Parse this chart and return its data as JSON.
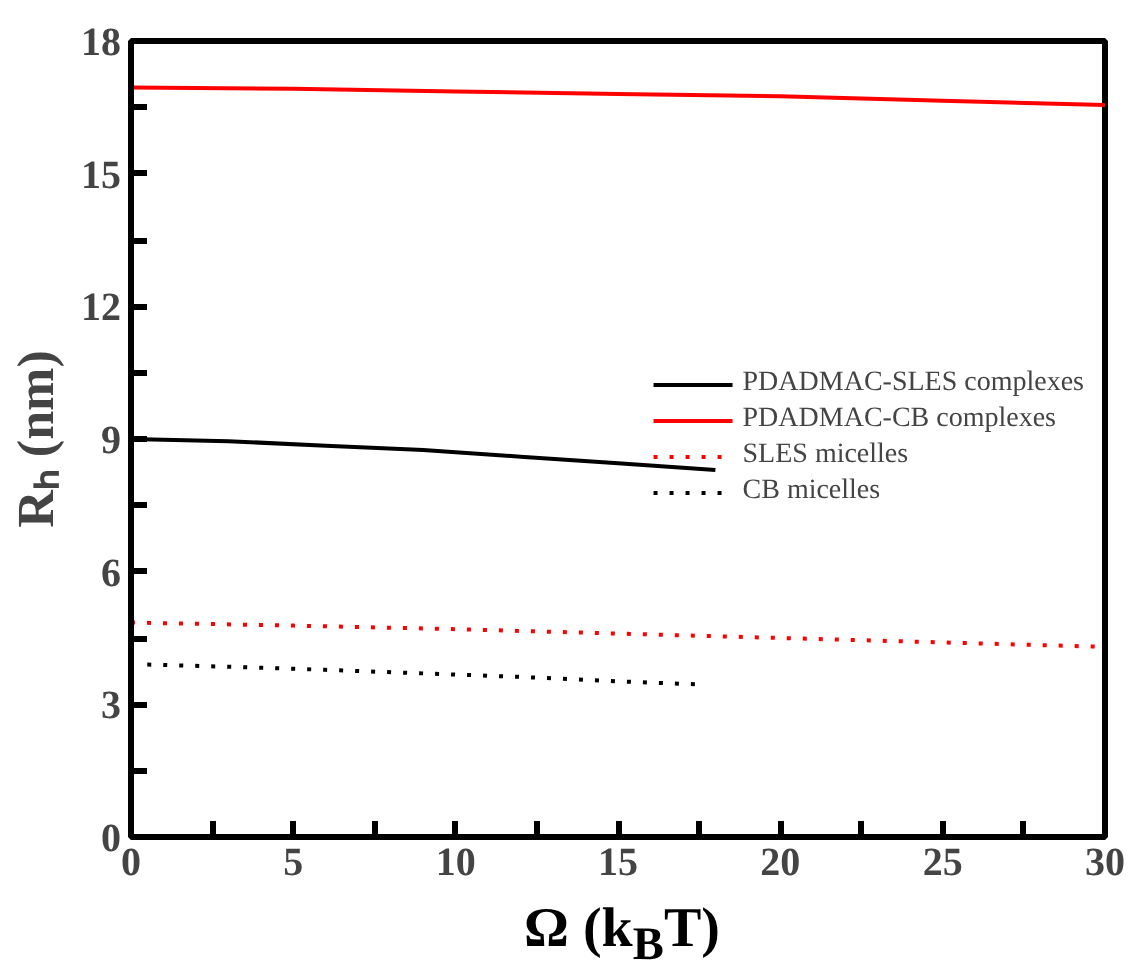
{
  "chart_data": {
    "type": "line",
    "xlabel": "Ω (k$_{B}$T)",
    "ylabel": "Rₕ (nm)",
    "xlim": [
      0,
      30
    ],
    "ylim": [
      0,
      18
    ],
    "xticks": [
      0,
      {
        "value": 2.5,
        "label": null
      },
      5,
      {
        "value": 7.5,
        "label": null
      },
      10,
      {
        "value": 12.5,
        "label": null
      },
      15,
      {
        "value": 17.5,
        "label": null
      },
      20,
      {
        "value": 22.5,
        "label": null
      },
      25,
      {
        "value": 27.5,
        "label": null
      },
      30
    ],
    "yticks": [
      0,
      {
        "value": 1.5,
        "label": null
      },
      3,
      {
        "value": 4.5,
        "label": null
      },
      6,
      {
        "value": 7.5,
        "label": null
      },
      9,
      {
        "value": 10.5,
        "label": null
      },
      12,
      {
        "value": 13.5,
        "label": null
      },
      15,
      {
        "value": 16.5,
        "label": null
      },
      18
    ],
    "grid": false,
    "legend": "right",
    "series": [
      {
        "name": "PDADMAC-SLES complexes",
        "color": "#000000",
        "line_style": "solid",
        "x": [
          0,
          3,
          6,
          9,
          12,
          15,
          18
        ],
        "values": [
          9.0,
          8.95,
          8.85,
          8.75,
          8.6,
          8.45,
          8.3
        ]
      },
      {
        "name": "PDADMAC-CB complexes",
        "color": "#ff0000",
        "line_style": "solid",
        "x": [
          0,
          5,
          10,
          15,
          20,
          25,
          30
        ],
        "values": [
          16.95,
          16.92,
          16.86,
          16.8,
          16.75,
          16.65,
          16.55
        ]
      },
      {
        "name": "SLES micelles",
        "color": "#ff0000",
        "line_style": "dotted",
        "x": [
          0,
          5,
          10,
          15,
          20,
          25,
          30
        ],
        "values": [
          4.85,
          4.78,
          4.7,
          4.6,
          4.5,
          4.4,
          4.3
        ]
      },
      {
        "name": "CB micelles",
        "color": "#000000",
        "line_style": "dotted",
        "x": [
          0.5,
          3,
          6,
          9,
          12,
          15,
          17.5
        ],
        "values": [
          3.9,
          3.85,
          3.78,
          3.7,
          3.62,
          3.52,
          3.45
        ]
      }
    ]
  }
}
